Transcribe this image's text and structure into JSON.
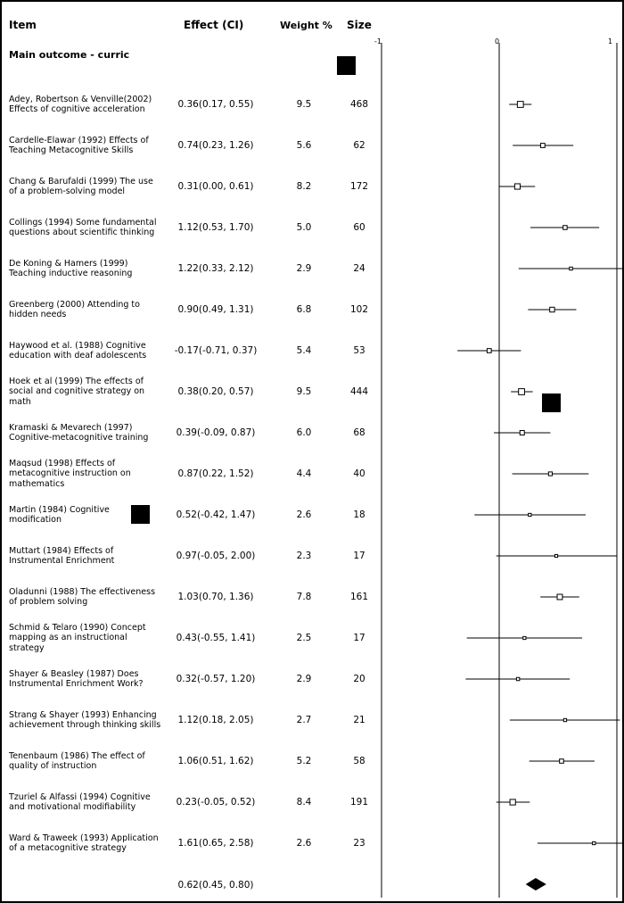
{
  "headers": {
    "item": "Item",
    "effect": "Effect (CI)",
    "weight": "Weight %",
    "size": "Size"
  },
  "subtitle": "Main outcome - curric",
  "chart_data": {
    "type": "forest",
    "xlim": [
      -1,
      1
    ],
    "ticks": [
      "-1",
      "0",
      "1"
    ],
    "studies": [
      {
        "label": "Adey, Robertson & Venville(2002) Effects of cognitive acceleration",
        "effect_text": "0.36(0.17, 0.55)",
        "weight_text": "9.5",
        "size_text": "468",
        "effect": 0.36,
        "lo": 0.17,
        "hi": 0.55
      },
      {
        "label": "Cardelle-Elawar (1992) Effects of Teaching Metacognitive Skills",
        "effect_text": "0.74(0.23, 1.26)",
        "weight_text": "5.6",
        "size_text": "62",
        "effect": 0.74,
        "lo": 0.23,
        "hi": 1.26
      },
      {
        "label": "Chang & Barufaldi (1999) The use of a problem-solving model",
        "effect_text": "0.31(0.00, 0.61)",
        "weight_text": "8.2",
        "size_text": "172",
        "effect": 0.31,
        "lo": 0.0,
        "hi": 0.61
      },
      {
        "label": "Collings (1994) Some fundamental questions about scientific thinking",
        "effect_text": "1.12(0.53, 1.70)",
        "weight_text": "5.0",
        "size_text": "60",
        "effect": 1.12,
        "lo": 0.53,
        "hi": 1.7
      },
      {
        "label": "De Koning & Hamers (1999) Teaching inductive reasoning",
        "effect_text": "1.22(0.33, 2.12)",
        "weight_text": "2.9",
        "size_text": "24",
        "effect": 1.22,
        "lo": 0.33,
        "hi": 2.12
      },
      {
        "label": "Greenberg (2000) Attending to hidden needs",
        "effect_text": "0.90(0.49, 1.31)",
        "weight_text": "6.8",
        "size_text": "102",
        "effect": 0.9,
        "lo": 0.49,
        "hi": 1.31
      },
      {
        "label": "Haywood et al. (1988) Cognitive education with deaf adolescents",
        "effect_text": "-0.17(-0.71, 0.37)",
        "weight_text": "5.4",
        "size_text": "53",
        "effect": -0.17,
        "lo": -0.71,
        "hi": 0.37
      },
      {
        "label": "Hoek et al (1999) The effects of social and cognitive strategy on math",
        "effect_text": "0.38(0.20, 0.57)",
        "weight_text": "9.5",
        "size_text": "444",
        "effect": 0.38,
        "lo": 0.2,
        "hi": 0.57
      },
      {
        "label": "Kramaski & Mevarech (1997) Cognitive-metacognitive training",
        "effect_text": "0.39(-0.09, 0.87)",
        "weight_text": "6.0",
        "size_text": "68",
        "effect": 0.39,
        "lo": -0.09,
        "hi": 0.87
      },
      {
        "label": "Maqsud (1998) Effects of metacognitive instruction on mathematics",
        "effect_text": "0.87(0.22, 1.52)",
        "weight_text": "4.4",
        "size_text": "40",
        "effect": 0.87,
        "lo": 0.22,
        "hi": 1.52
      },
      {
        "label": "Martin (1984) Cognitive modification",
        "effect_text": "0.52(-0.42, 1.47)",
        "weight_text": "2.6",
        "size_text": "18",
        "effect": 0.52,
        "lo": -0.42,
        "hi": 1.47
      },
      {
        "label": "Muttart (1984) Effects of Instrumental Enrichment",
        "effect_text": "0.97(-0.05, 2.00)",
        "weight_text": "2.3",
        "size_text": "17",
        "effect": 0.97,
        "lo": -0.05,
        "hi": 2.0
      },
      {
        "label": "Oladunni (1988) The effectiveness of problem solving",
        "effect_text": "1.03(0.70, 1.36)",
        "weight_text": "7.8",
        "size_text": "161",
        "effect": 1.03,
        "lo": 0.7,
        "hi": 1.36
      },
      {
        "label": "Schmid & Telaro (1990) Concept mapping as an instructional strategy",
        "effect_text": "0.43(-0.55, 1.41)",
        "weight_text": "2.5",
        "size_text": "17",
        "effect": 0.43,
        "lo": -0.55,
        "hi": 1.41
      },
      {
        "label": "Shayer & Beasley (1987) Does Instrumental Enrichment Work?",
        "effect_text": "0.32(-0.57, 1.20)",
        "weight_text": "2.9",
        "size_text": "20",
        "effect": 0.32,
        "lo": -0.57,
        "hi": 1.2
      },
      {
        "label": "Strang & Shayer (1993) Enhancing achievement through thinking skills",
        "effect_text": "1.12(0.18, 2.05)",
        "weight_text": "2.7",
        "size_text": "21",
        "effect": 1.12,
        "lo": 0.18,
        "hi": 2.05
      },
      {
        "label": "Tenenbaum (1986) The effect of quality of instruction",
        "effect_text": "1.06(0.51, 1.62)",
        "weight_text": "5.2",
        "size_text": "58",
        "effect": 1.06,
        "lo": 0.51,
        "hi": 1.62
      },
      {
        "label": "Tzuriel & Alfassi (1994) Cognitive and motivational modifiability",
        "effect_text": "0.23(-0.05, 0.52)",
        "weight_text": "8.4",
        "size_text": "191",
        "effect": 0.23,
        "lo": -0.05,
        "hi": 0.52
      },
      {
        "label": "Ward & Traweek (1993) Application of a metacognitive strategy",
        "effect_text": "1.61(0.65, 2.58)",
        "weight_text": "2.6",
        "size_text": "23",
        "effect": 1.61,
        "lo": 0.65,
        "hi": 2.58
      }
    ],
    "pooled": {
      "effect_text": "0.62(0.45, 0.80)",
      "effect": 0.62,
      "lo": 0.45,
      "hi": 0.8
    }
  }
}
